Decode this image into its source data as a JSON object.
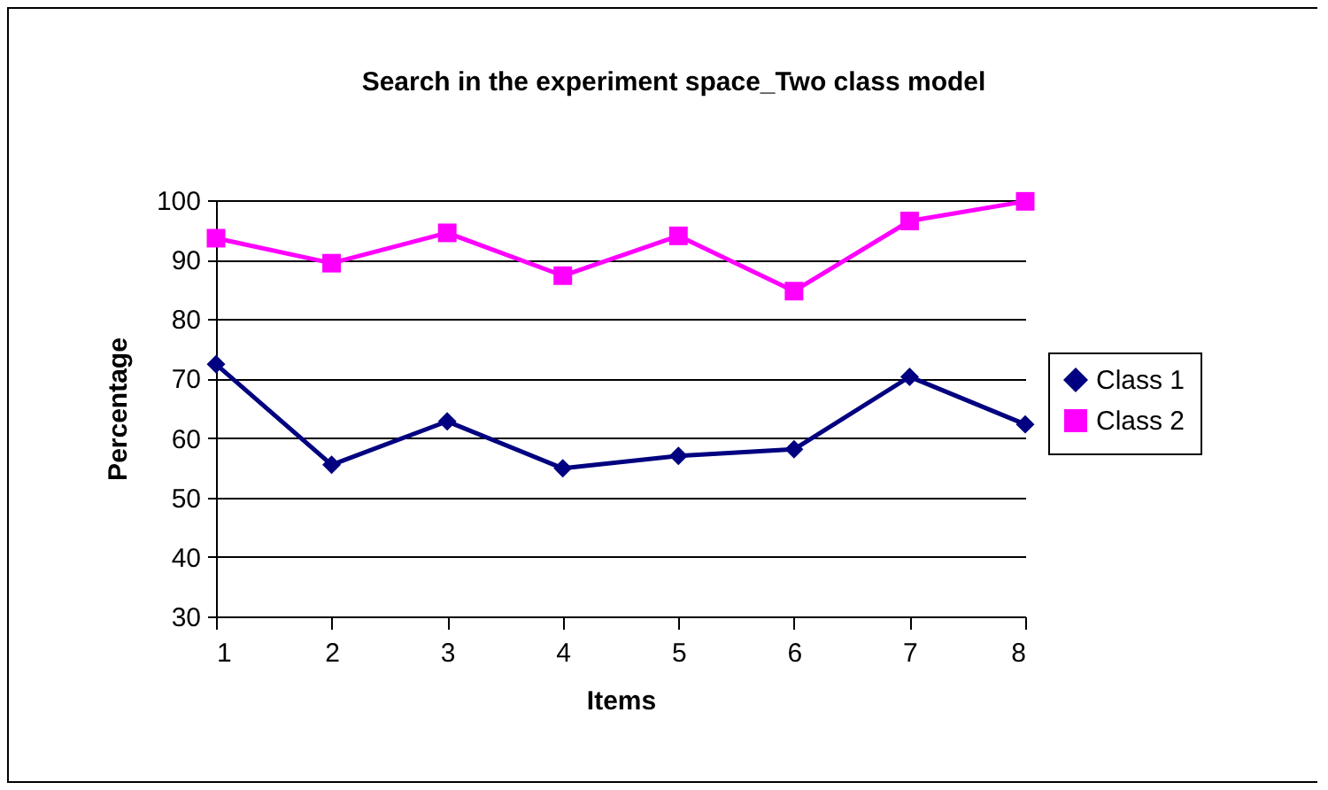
{
  "chart_data": {
    "type": "line",
    "title": "Search in the experiment space_Two class model",
    "xlabel": "Items",
    "ylabel": "Percentage",
    "categories": [
      "1",
      "2",
      "3",
      "4",
      "5",
      "6",
      "7",
      "8"
    ],
    "series": [
      {
        "name": "Class 1",
        "color": "#000080",
        "marker": "diamond",
        "values": [
          72.4,
          55.5,
          62.8,
          54.9,
          57.0,
          58.1,
          70.3,
          62.3
        ]
      },
      {
        "name": "Class 2",
        "color": "#ff00ff",
        "marker": "square",
        "values": [
          93.6,
          89.4,
          94.5,
          87.3,
          94.0,
          84.7,
          96.5,
          99.8
        ]
      }
    ],
    "ylim": [
      30,
      100
    ],
    "yticks": [
      30,
      40,
      50,
      60,
      70,
      80,
      90,
      100
    ],
    "grid": "y",
    "legend": "right"
  }
}
